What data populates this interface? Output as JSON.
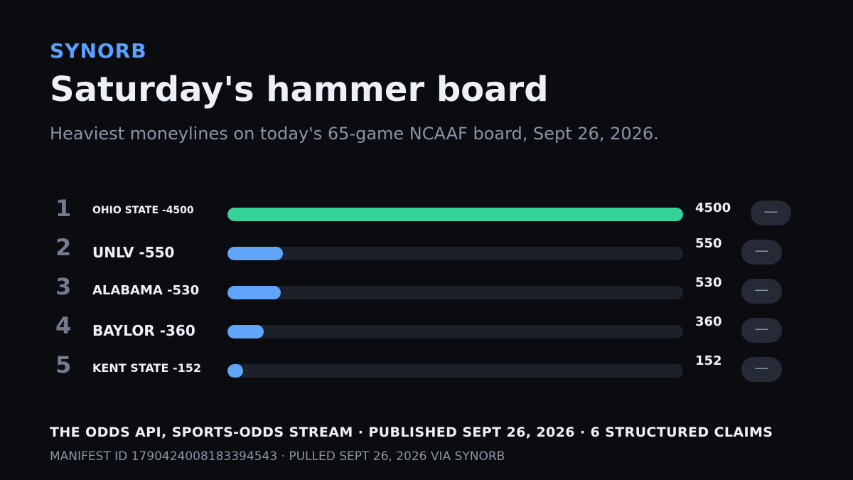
{
  "header": {
    "brand": "SYNORB",
    "title": "Saturday's hammer board",
    "subtitle": "Heaviest moneylines on today's 65-game NCAAF board, Sept 26, 2026."
  },
  "chart_data": {
    "type": "bar",
    "orientation": "horizontal",
    "title": "Saturday's hammer board",
    "subtitle": "Heaviest moneylines on today's 65-game NCAAF board, Sept 26, 2026.",
    "xlim": [
      0,
      4500
    ],
    "categories": [
      "OHIO STATE -4500",
      "UNLV -550",
      "ALABAMA -530",
      "BAYLOR -360",
      "KENT STATE -152"
    ],
    "rows": [
      {
        "rank": "1",
        "label": "OHIO STATE -4500",
        "value": 4500,
        "value_label": "4500",
        "color": "#34d399"
      },
      {
        "rank": "2",
        "label": "UNLV -550",
        "value": 550,
        "value_label": "550",
        "color": "#60a5fa"
      },
      {
        "rank": "3",
        "label": "ALABAMA -530",
        "value": 530,
        "value_label": "530",
        "color": "#60a5fa"
      },
      {
        "rank": "4",
        "label": "BAYLOR -360",
        "value": 360,
        "value_label": "360",
        "color": "#60a5fa"
      },
      {
        "rank": "5",
        "label": "KENT STATE -152",
        "value": 152,
        "value_label": "152",
        "color": "#60a5fa"
      }
    ],
    "trend_indicator": "—"
  },
  "footer": {
    "source": "THE ODDS API, SPORTS-ODDS STREAM · PUBLISHED SEPT 26, 2026 · 6 STRUCTURED CLAIMS",
    "manifest": "MANIFEST ID 1790424008183394543 · PULLED SEPT 26, 2026 VIA SYNORB"
  }
}
